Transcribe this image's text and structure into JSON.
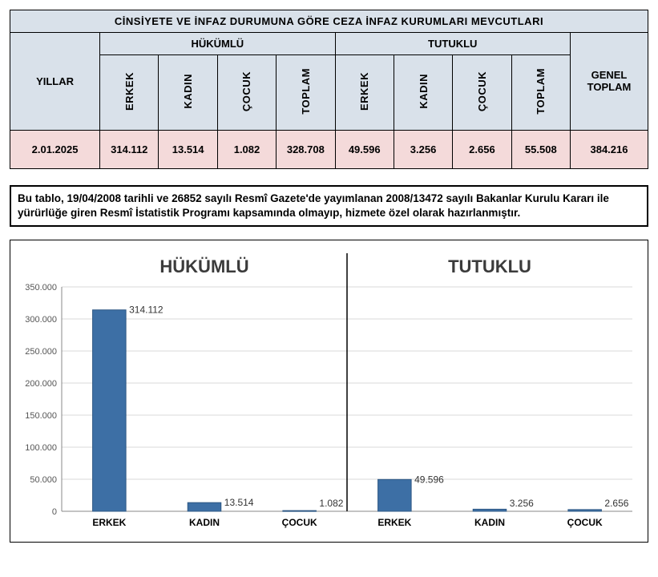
{
  "table": {
    "title": "CİNSİYETE VE İNFAZ DURUMUNA GÖRE CEZA İNFAZ KURUMLARI MEVCUTLARI",
    "year_header": "YILLAR",
    "groups": [
      "HÜKÜMLÜ",
      "TUTUKLU"
    ],
    "sub_headers": [
      "ERKEK",
      "KADIN",
      "ÇOCUK",
      "TOPLAM",
      "ERKEK",
      "KADIN",
      "ÇOCUK",
      "TOPLAM"
    ],
    "grand_total_header": "GENEL TOPLAM",
    "row": {
      "date": "2.01.2025",
      "cells": [
        "314.112",
        "13.514",
        "1.082",
        "328.708",
        "49.596",
        "3.256",
        "2.656",
        "55.508"
      ],
      "grand_total": "384.216"
    },
    "colors": {
      "header_bg": "#d9e1ea",
      "row_bg": "#f4dada",
      "border": "#000000"
    }
  },
  "note": "Bu tablo, 19/04/2008 tarihli ve 26852 sayılı Resmî Gazete'de yayımlanan 2008/13472 sayılı Bakanlar Kurulu Kararı ile yürürlüğe giren Resmî İstatistik Programı kapsamında olmayıp, hizmete özel olarak hazırlanmıştır.",
  "chart": {
    "type": "bar",
    "ylim": [
      0,
      350000
    ],
    "ytick_step": 50000,
    "yticks": [
      "0",
      "50.000",
      "100.000",
      "150.000",
      "200.000",
      "250.000",
      "300.000",
      "350.000"
    ],
    "bar_color": "#3d6fa5",
    "bar_border": "#2e5884",
    "grid_color": "#d9d9d9",
    "axis_color": "#888888",
    "panel_divider": "#000000",
    "background": "#ffffff",
    "bar_width": 0.35,
    "panels": [
      {
        "title": "HÜKÜMLÜ",
        "categories": [
          "ERKEK",
          "KADIN",
          "ÇOCUK"
        ],
        "values": [
          314112,
          13514,
          1082
        ],
        "value_labels": [
          "314.112",
          "13.514",
          "1.082"
        ]
      },
      {
        "title": "TUTUKLU",
        "categories": [
          "ERKEK",
          "KADIN",
          "ÇOCUK"
        ],
        "values": [
          49596,
          3256,
          2656
        ],
        "value_labels": [
          "49.596",
          "3.256",
          "2.656"
        ]
      }
    ]
  }
}
